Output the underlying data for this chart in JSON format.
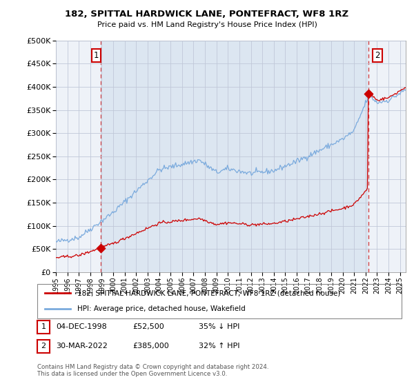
{
  "title": "182, SPITTAL HARDWICK LANE, PONTEFRACT, WF8 1RZ",
  "subtitle": "Price paid vs. HM Land Registry's House Price Index (HPI)",
  "ytick_values": [
    0,
    50000,
    100000,
    150000,
    200000,
    250000,
    300000,
    350000,
    400000,
    450000,
    500000
  ],
  "ylim": [
    0,
    500000
  ],
  "xlim_start": 1995.0,
  "xlim_end": 2025.5,
  "hpi_color": "#7aaadd",
  "price_color": "#cc0000",
  "point1_x": 1998.92,
  "point1_y": 52500,
  "point2_x": 2022.24,
  "point2_y": 385000,
  "point1_label": "1",
  "point2_label": "2",
  "legend_line1": "182, SPITTAL HARDWICK LANE, PONTEFRACT, WF8 1RZ (detached house)",
  "legend_line2": "HPI: Average price, detached house, Wakefield",
  "table_row1": [
    "1",
    "04-DEC-1998",
    "£52,500",
    "35% ↓ HPI"
  ],
  "table_row2": [
    "2",
    "30-MAR-2022",
    "£385,000",
    "32% ↑ HPI"
  ],
  "footnote": "Contains HM Land Registry data © Crown copyright and database right 2024.\nThis data is licensed under the Open Government Licence v3.0.",
  "background_color": "#ffffff",
  "chart_bg_color": "#dce6f1",
  "chart_bg_left_color": "#f0f4fa",
  "grid_color": "#c0c8d8",
  "xtick_years": [
    1995,
    1996,
    1997,
    1998,
    1999,
    2000,
    2001,
    2002,
    2003,
    2004,
    2005,
    2006,
    2007,
    2008,
    2009,
    2010,
    2011,
    2012,
    2013,
    2014,
    2015,
    2016,
    2017,
    2018,
    2019,
    2020,
    2021,
    2022,
    2023,
    2024,
    2025
  ]
}
